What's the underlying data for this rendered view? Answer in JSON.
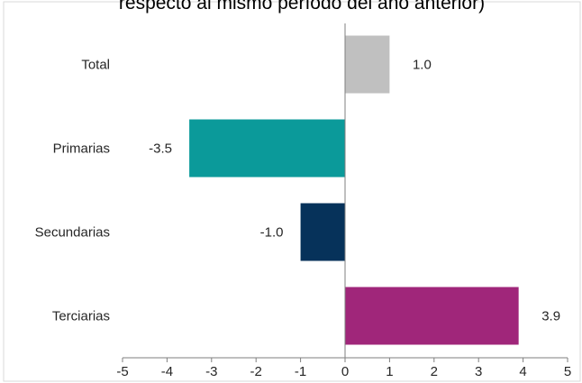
{
  "chart_data": {
    "type": "bar",
    "orientation": "horizontal",
    "title": "respecto al mismo período del año anterior)",
    "categories": [
      "Total",
      "Primarias",
      "Secundarias",
      "Terciarias"
    ],
    "values": [
      1.0,
      -3.5,
      -1.0,
      3.9
    ],
    "data_labels": [
      "1.0",
      "-3.5",
      "-1.0",
      "3.9"
    ],
    "xlim": [
      -5,
      5
    ],
    "ticks": [
      -5,
      -4,
      -3,
      -2,
      -1,
      0,
      1,
      2,
      3,
      4,
      5
    ],
    "tick_labels": [
      "-5",
      "-4",
      "-3",
      "-2",
      "-1",
      "0",
      "1",
      "2",
      "3",
      "4",
      "5"
    ],
    "colors": [
      "#c0c0c0",
      "#0b9a9a",
      "#06325a",
      "#a0267a"
    ],
    "axis_color": "#7f7f7f",
    "grid": false,
    "legend": "none"
  }
}
